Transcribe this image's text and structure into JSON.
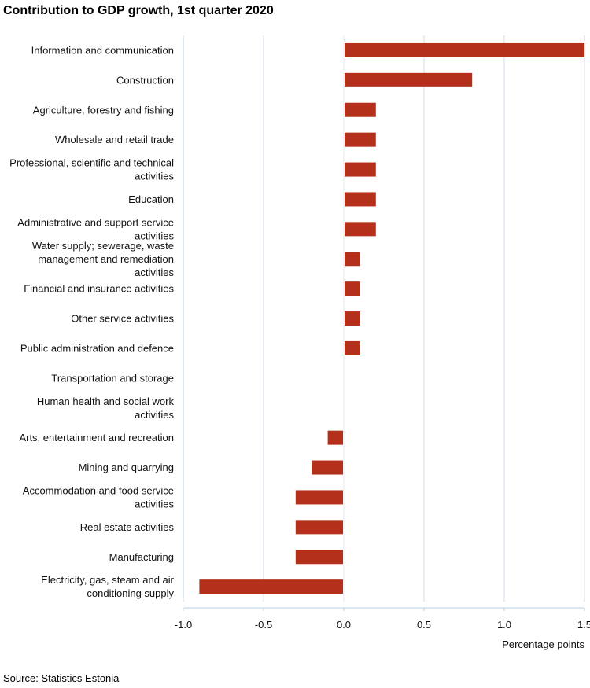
{
  "chart_data": {
    "type": "bar",
    "orientation": "horizontal",
    "title": "Contribution to GDP growth, 1st quarter 2020",
    "xlabel": "Percentage points",
    "ylabel": "",
    "source": "Source: Statistics Estonia",
    "xlim": [
      -1.0,
      1.5
    ],
    "xticks": [
      -1.0,
      -0.5,
      0.0,
      0.5,
      1.0,
      1.5
    ],
    "xtick_labels": [
      "-1.0",
      "-0.5",
      "0.0",
      "0.5",
      "1.0",
      "1.5"
    ],
    "grid": true,
    "bar_color": "#b5301a",
    "categories": [
      [
        "Information and communication"
      ],
      [
        "Construction"
      ],
      [
        "Agriculture, forestry and fishing"
      ],
      [
        "Wholesale and retail trade"
      ],
      [
        "Professional, scientific and technical",
        "activities"
      ],
      [
        "Education"
      ],
      [
        "Administrative and support service",
        "activities"
      ],
      [
        "Water supply; sewerage, waste",
        "management and remediation",
        "activities"
      ],
      [
        "Financial and insurance activities"
      ],
      [
        "Other service activities"
      ],
      [
        "Public administration and defence"
      ],
      [
        "Transportation and storage"
      ],
      [
        "Human health and social work",
        "activities"
      ],
      [
        "Arts, entertainment and recreation"
      ],
      [
        "Mining and quarrying"
      ],
      [
        "Accommodation and food service",
        "activities"
      ],
      [
        "Real estate activities"
      ],
      [
        "Manufacturing"
      ],
      [
        "Electricity, gas, steam and air",
        "conditioning supply"
      ]
    ],
    "values": [
      1.5,
      0.8,
      0.2,
      0.2,
      0.2,
      0.2,
      0.2,
      0.1,
      0.1,
      0.1,
      0.1,
      0.0,
      0.0,
      -0.1,
      -0.2,
      -0.3,
      -0.3,
      -0.3,
      -0.9
    ]
  }
}
